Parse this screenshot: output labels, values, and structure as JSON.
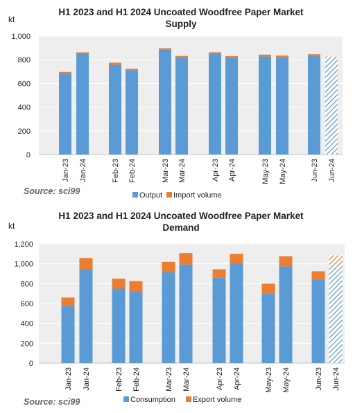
{
  "chart_data": [
    {
      "type": "bar",
      "stacked": true,
      "title": "H1 2023 and H1 2024 Uncoated Woodfree Paper Market",
      "subtitle": "Supply",
      "unit": "kt",
      "categories": [
        "Jan-23",
        "Jan-24",
        "Feb-23",
        "Feb-24",
        "Mar-23",
        "Mar-24",
        "Apr-23",
        "Apr-24",
        "May-23",
        "May-24",
        "Jun-23",
        "Jun-24"
      ],
      "series": [
        {
          "name": "Output",
          "color": "#5b9bd5",
          "values": [
            685,
            848,
            758,
            712,
            885,
            820,
            848,
            815,
            828,
            820,
            835,
            815
          ]
        },
        {
          "name": "Import volume",
          "color": "#ed7d31",
          "values": [
            12,
            15,
            17,
            12,
            12,
            12,
            15,
            15,
            15,
            15,
            12,
            12
          ]
        }
      ],
      "hatched_categories": [
        "Jun-24"
      ],
      "ylim": [
        0,
        1000
      ],
      "yticks": [
        "0",
        "200",
        "400",
        "600",
        "800",
        "1,000"
      ],
      "source": "Source: sci99",
      "grid": true,
      "legend_position": "bottom"
    },
    {
      "type": "bar",
      "stacked": true,
      "title": "H1 2023 and H1 2024 Uncoated Woodfree Paper Market",
      "subtitle": "Demand",
      "unit": "kt",
      "categories": [
        "Jan-23",
        "Jan-24",
        "Feb-23",
        "Feb-24",
        "Mar-23",
        "Mar-24",
        "Apr-23",
        "Apr-24",
        "May-23",
        "May-24",
        "Jun-23",
        "Jun-24"
      ],
      "series": [
        {
          "name": "Consumption",
          "color": "#5b9bd5",
          "values": [
            575,
            948,
            750,
            725,
            915,
            993,
            860,
            1005,
            700,
            975,
            840,
            990
          ]
        },
        {
          "name": "Export volume",
          "color": "#ed7d31",
          "values": [
            85,
            110,
            100,
            100,
            105,
            115,
            85,
            95,
            100,
            100,
            85,
            95
          ]
        }
      ],
      "hatched_categories": [
        "Jun-24"
      ],
      "ylim": [
        0,
        1200
      ],
      "yticks": [
        "0",
        "200",
        "400",
        "600",
        "800",
        "1,000",
        "1,200"
      ],
      "source": "Source: sci99",
      "grid": true,
      "legend_position": "bottom"
    }
  ]
}
